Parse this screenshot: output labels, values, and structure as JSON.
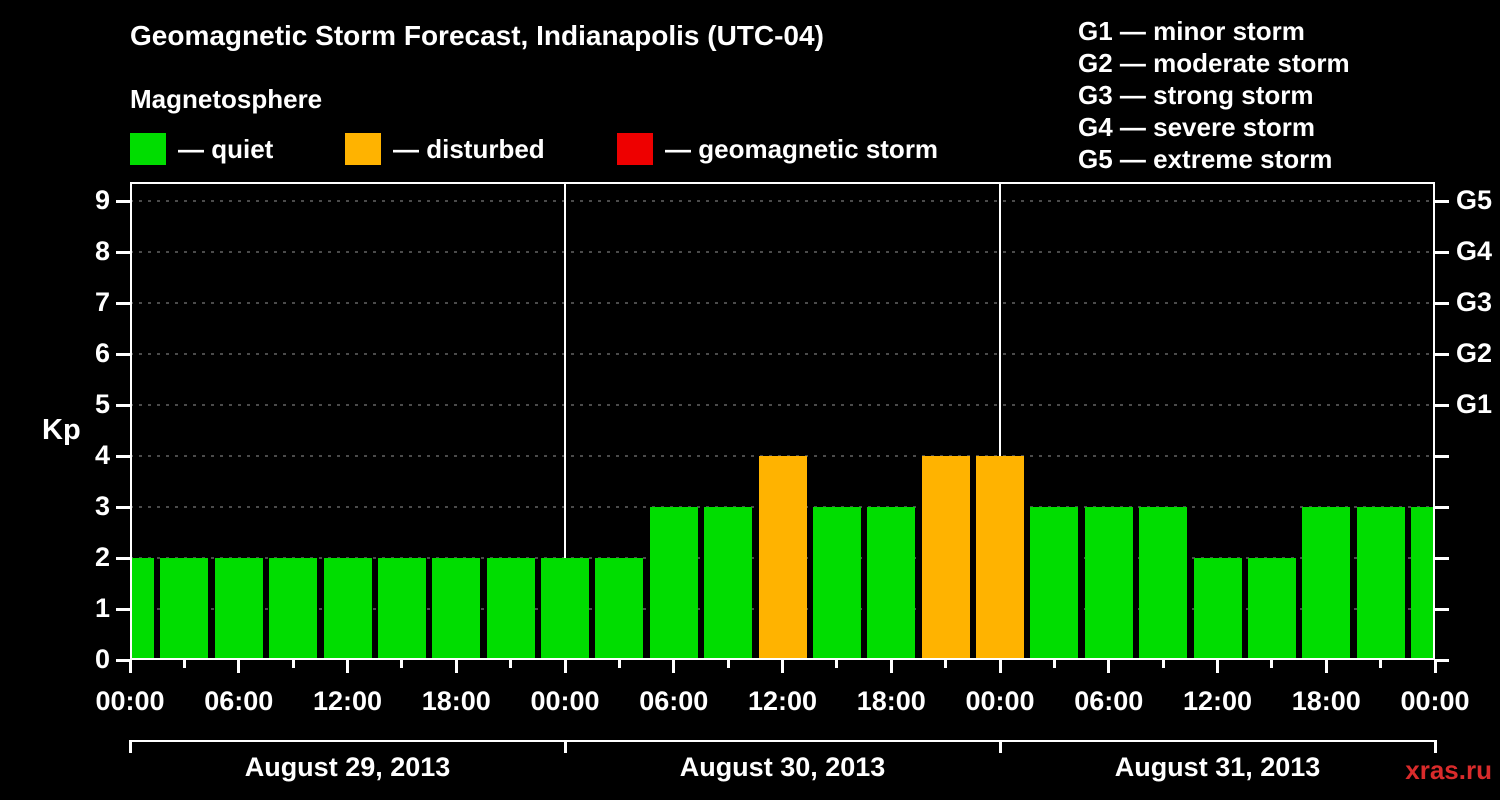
{
  "title": "Geomagnetic Storm Forecast, Indianapolis (UTC-04)",
  "subtitle": "Magnetosphere",
  "watermark": "xras.ru",
  "legend": {
    "items": [
      {
        "key": "quiet",
        "label": "— quiet",
        "color": "#00dd00"
      },
      {
        "key": "disturbed",
        "label": "— disturbed",
        "color": "#ffb300"
      },
      {
        "key": "storm",
        "label": "— geomagnetic storm",
        "color": "#ee0000"
      }
    ]
  },
  "g_scale": [
    "G1 — minor storm",
    "G2 — moderate storm",
    "G3 — strong storm",
    "G4 — severe storm",
    "G5 — extreme storm"
  ],
  "chart_data": {
    "type": "bar",
    "title": "Geomagnetic Storm Forecast, Indianapolis (UTC-04)",
    "ylabel": "Kp",
    "ylim": [
      0,
      9
    ],
    "y_ticks": [
      0,
      1,
      2,
      3,
      4,
      5,
      6,
      7,
      8,
      9
    ],
    "x_start_label": "August 29, 2013 00:00",
    "x_hours_total": 72,
    "x_tick_interval_hours": 6,
    "x_tick_labels": [
      "00:00",
      "06:00",
      "12:00",
      "18:00",
      "00:00",
      "06:00",
      "12:00",
      "18:00",
      "00:00",
      "06:00",
      "12:00",
      "18:00",
      "00:00"
    ],
    "right_axis": [
      {
        "label": "G5",
        "kp": 9
      },
      {
        "label": "G4",
        "kp": 8
      },
      {
        "label": "G3",
        "kp": 7
      },
      {
        "label": "G2",
        "kp": 6
      },
      {
        "label": "G1",
        "kp": 5
      }
    ],
    "day_labels": [
      "August 29, 2013",
      "August 30, 2013",
      "August 31, 2013"
    ],
    "day_boundaries_hours": [
      0,
      24,
      48,
      72
    ],
    "colors": {
      "quiet": "#00dd00",
      "disturbed": "#ffb300",
      "storm": "#ee0000"
    },
    "grid": true,
    "bars": [
      {
        "hour": 0,
        "kp": 2,
        "condition": "quiet"
      },
      {
        "hour": 3,
        "kp": 2,
        "condition": "quiet"
      },
      {
        "hour": 6,
        "kp": 2,
        "condition": "quiet"
      },
      {
        "hour": 9,
        "kp": 2,
        "condition": "quiet"
      },
      {
        "hour": 12,
        "kp": 2,
        "condition": "quiet"
      },
      {
        "hour": 15,
        "kp": 2,
        "condition": "quiet"
      },
      {
        "hour": 18,
        "kp": 2,
        "condition": "quiet"
      },
      {
        "hour": 21,
        "kp": 2,
        "condition": "quiet"
      },
      {
        "hour": 24,
        "kp": 2,
        "condition": "quiet"
      },
      {
        "hour": 27,
        "kp": 2,
        "condition": "quiet"
      },
      {
        "hour": 30,
        "kp": 3,
        "condition": "quiet"
      },
      {
        "hour": 33,
        "kp": 3,
        "condition": "quiet"
      },
      {
        "hour": 36,
        "kp": 4,
        "condition": "disturbed"
      },
      {
        "hour": 39,
        "kp": 3,
        "condition": "quiet"
      },
      {
        "hour": 42,
        "kp": 3,
        "condition": "quiet"
      },
      {
        "hour": 45,
        "kp": 4,
        "condition": "disturbed"
      },
      {
        "hour": 48,
        "kp": 4,
        "condition": "disturbed"
      },
      {
        "hour": 51,
        "kp": 3,
        "condition": "quiet"
      },
      {
        "hour": 54,
        "kp": 3,
        "condition": "quiet"
      },
      {
        "hour": 57,
        "kp": 3,
        "condition": "quiet"
      },
      {
        "hour": 60,
        "kp": 2,
        "condition": "quiet"
      },
      {
        "hour": 63,
        "kp": 2,
        "condition": "quiet"
      },
      {
        "hour": 66,
        "kp": 3,
        "condition": "quiet"
      },
      {
        "hour": 69,
        "kp": 3,
        "condition": "quiet"
      },
      {
        "hour": 72,
        "kp": 3,
        "condition": "quiet"
      }
    ]
  }
}
